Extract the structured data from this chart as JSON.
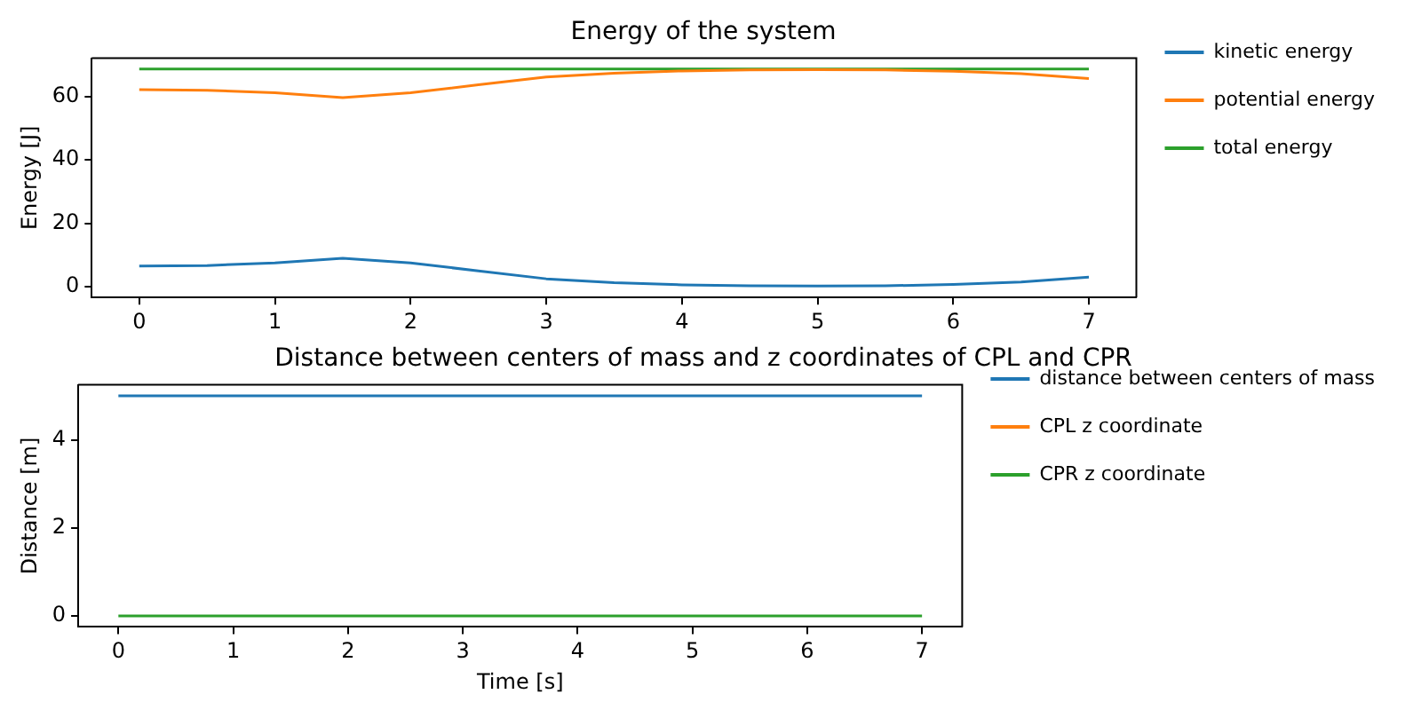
{
  "chart_data": [
    {
      "type": "line",
      "title": "Energy of the system",
      "ylabel": "Energy [J]",
      "xlim": [
        -0.35,
        7.35
      ],
      "xticks": [
        0,
        1,
        2,
        3,
        4,
        5,
        6,
        7
      ],
      "ylim": [
        -3.4,
        72.1
      ],
      "yticks": [
        0,
        20,
        40,
        60
      ],
      "legend": "right",
      "grid": false,
      "series": [
        {
          "name": "kinetic energy",
          "color": "#1f77b4",
          "x": [
            0,
            0.5,
            1,
            1.5,
            2,
            2.5,
            3,
            3.5,
            4,
            4.5,
            5,
            5.5,
            6,
            6.5,
            7
          ],
          "values": [
            6.5,
            6.7,
            7.5,
            9,
            7.5,
            5,
            2.5,
            1.3,
            0.6,
            0.3,
            0.2,
            0.3,
            0.7,
            1.5,
            3
          ]
        },
        {
          "name": "potential energy",
          "color": "#ff7f0e",
          "x": [
            0,
            0.5,
            1,
            1.5,
            2,
            2.5,
            3,
            3.5,
            4,
            4.5,
            5,
            5.5,
            6,
            6.5,
            7
          ],
          "values": [
            62.2,
            62,
            61.2,
            59.7,
            61.2,
            63.7,
            66.2,
            67.4,
            68.1,
            68.4,
            68.5,
            68.4,
            68,
            67.2,
            65.7
          ]
        },
        {
          "name": "total energy",
          "color": "#2ca02c",
          "x": [
            0,
            7
          ],
          "values": [
            68.7,
            68.7
          ]
        }
      ]
    },
    {
      "type": "line",
      "title": "Distance between centers of mass and z coordinates of CPL and CPR",
      "xlabel": "Time [s]",
      "ylabel": "Distance [m]",
      "xlim": [
        -0.35,
        7.35
      ],
      "xticks": [
        0,
        1,
        2,
        3,
        4,
        5,
        6,
        7
      ],
      "ylim": [
        -0.25,
        5.25
      ],
      "yticks": [
        0,
        2,
        4
      ],
      "legend": "right",
      "grid": false,
      "series": [
        {
          "name": "distance between centers of mass",
          "color": "#1f77b4",
          "x": [
            0,
            7
          ],
          "values": [
            5,
            5
          ]
        },
        {
          "name": "CPL z coordinate",
          "color": "#ff7f0e"
        },
        {
          "name": "CPR z coordinate",
          "color": "#2ca02c",
          "x": [
            0,
            7
          ],
          "values": [
            0,
            0
          ]
        }
      ]
    }
  ]
}
